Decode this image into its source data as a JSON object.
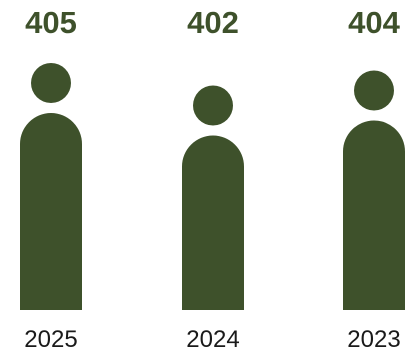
{
  "colors": {
    "figure": "#3e512b",
    "value_text": "#3e512b",
    "label_text": "#1a1a1a"
  },
  "chart_data": {
    "type": "bar",
    "mark": "person-icon",
    "categories": [
      "2025",
      "2024",
      "2023"
    ],
    "values": [
      405,
      402,
      404
    ],
    "title": "",
    "xlabel": "",
    "ylabel": ""
  }
}
